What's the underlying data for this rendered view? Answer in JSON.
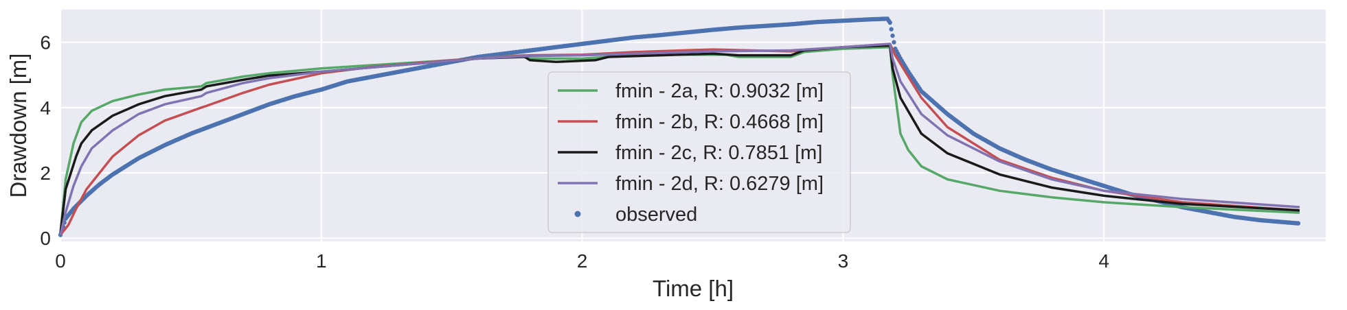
{
  "chart_data": {
    "type": "line",
    "xlabel": "Time [h]",
    "ylabel": "Drawdown [m]",
    "xlim": [
      0,
      4.85
    ],
    "ylim": [
      -0.1,
      7.0
    ],
    "xticks": [
      0,
      1,
      2,
      3,
      4
    ],
    "yticks": [
      0,
      2,
      4,
      6
    ],
    "grid": true,
    "legend_position": "center",
    "background": "#eaeaf2",
    "series": [
      {
        "name": "fmin - 2a, R: 0.9032 [m]",
        "style": "line",
        "color": "#55a868",
        "x": [
          0,
          0.02,
          0.05,
          0.08,
          0.12,
          0.2,
          0.3,
          0.4,
          0.54,
          0.56,
          0.7,
          0.8,
          1.0,
          1.2,
          1.5,
          1.78,
          1.8,
          2.0,
          2.1,
          2.3,
          2.55,
          2.6,
          2.8,
          2.85,
          3.0,
          3.18,
          3.19,
          3.22,
          3.25,
          3.3,
          3.4,
          3.6,
          3.8,
          4.0,
          4.3,
          4.75
        ],
        "y": [
          0.15,
          1.8,
          2.9,
          3.55,
          3.9,
          4.2,
          4.4,
          4.55,
          4.65,
          4.75,
          4.95,
          5.05,
          5.2,
          5.3,
          5.45,
          5.6,
          5.5,
          5.5,
          5.55,
          5.62,
          5.62,
          5.55,
          5.55,
          5.7,
          5.8,
          5.85,
          5.0,
          3.2,
          2.7,
          2.2,
          1.8,
          1.45,
          1.25,
          1.1,
          0.95,
          0.78
        ]
      },
      {
        "name": "fmin - 2b, R: 0.4668 [m]",
        "style": "line",
        "color": "#c44e52",
        "x": [
          0,
          0.03,
          0.06,
          0.1,
          0.2,
          0.3,
          0.4,
          0.54,
          0.56,
          0.7,
          0.8,
          1.0,
          1.2,
          1.5,
          1.8,
          2.0,
          2.2,
          2.5,
          2.8,
          3.0,
          3.18,
          3.2,
          3.3,
          3.4,
          3.6,
          3.8,
          4.0,
          4.3,
          4.75
        ],
        "y": [
          0.1,
          0.4,
          0.9,
          1.5,
          2.5,
          3.15,
          3.6,
          4.0,
          4.05,
          4.45,
          4.7,
          5.05,
          5.25,
          5.45,
          5.6,
          5.62,
          5.7,
          5.78,
          5.72,
          5.85,
          5.95,
          5.6,
          4.3,
          3.4,
          2.4,
          1.85,
          1.45,
          1.1,
          0.85
        ]
      },
      {
        "name": "fmin - 2c, R: 0.7851 [m]",
        "style": "line",
        "color": "#1a1a1a",
        "x": [
          0,
          0.02,
          0.04,
          0.06,
          0.08,
          0.12,
          0.2,
          0.3,
          0.4,
          0.54,
          0.56,
          0.7,
          0.8,
          1.0,
          1.3,
          1.6,
          1.78,
          1.8,
          1.9,
          2.05,
          2.1,
          2.3,
          2.5,
          2.6,
          2.8,
          2.85,
          3.0,
          3.18,
          3.19,
          3.22,
          3.3,
          3.4,
          3.6,
          3.8,
          4.0,
          4.3,
          4.75
        ],
        "y": [
          0.15,
          1.5,
          2.0,
          2.5,
          2.9,
          3.3,
          3.75,
          4.1,
          4.35,
          4.55,
          4.65,
          4.85,
          4.98,
          5.1,
          5.3,
          5.5,
          5.55,
          5.45,
          5.4,
          5.45,
          5.55,
          5.6,
          5.65,
          5.6,
          5.6,
          5.75,
          5.85,
          5.9,
          5.2,
          4.3,
          3.2,
          2.6,
          1.95,
          1.55,
          1.3,
          1.05,
          0.85
        ]
      },
      {
        "name": "fmin - 2d, R: 0.6279 [m]",
        "style": "line",
        "color": "#8172b2",
        "x": [
          0,
          0.02,
          0.05,
          0.08,
          0.12,
          0.2,
          0.3,
          0.4,
          0.54,
          0.56,
          0.7,
          0.8,
          1.0,
          1.3,
          1.6,
          1.8,
          2.0,
          2.2,
          2.5,
          2.8,
          3.0,
          3.18,
          3.19,
          3.22,
          3.3,
          3.4,
          3.6,
          3.8,
          4.0,
          4.3,
          4.75
        ],
        "y": [
          0.1,
          0.8,
          1.6,
          2.2,
          2.75,
          3.3,
          3.8,
          4.1,
          4.35,
          4.45,
          4.75,
          4.9,
          5.1,
          5.3,
          5.5,
          5.58,
          5.6,
          5.65,
          5.72,
          5.75,
          5.85,
          5.95,
          5.5,
          4.8,
          3.8,
          3.15,
          2.35,
          1.8,
          1.45,
          1.2,
          0.95
        ]
      },
      {
        "name": "observed",
        "style": "markers",
        "color": "#4c72b0",
        "x": [
          0,
          0.02,
          0.05,
          0.1,
          0.15,
          0.2,
          0.3,
          0.4,
          0.5,
          0.6,
          0.7,
          0.8,
          0.9,
          1.0,
          1.1,
          1.2,
          1.3,
          1.4,
          1.5,
          1.6,
          1.7,
          1.8,
          1.9,
          2.0,
          2.1,
          2.2,
          2.3,
          2.4,
          2.5,
          2.6,
          2.7,
          2.8,
          2.9,
          3.0,
          3.1,
          3.17,
          3.18,
          3.19,
          3.2,
          3.22,
          3.25,
          3.3,
          3.4,
          3.5,
          3.6,
          3.7,
          3.8,
          3.9,
          4.0,
          4.1,
          4.2,
          4.3,
          4.4,
          4.5,
          4.6,
          4.75
        ],
        "y": [
          0.1,
          0.6,
          0.9,
          1.3,
          1.65,
          1.95,
          2.45,
          2.85,
          3.2,
          3.5,
          3.8,
          4.1,
          4.35,
          4.55,
          4.8,
          4.95,
          5.1,
          5.25,
          5.4,
          5.55,
          5.65,
          5.75,
          5.85,
          5.95,
          6.05,
          6.15,
          6.22,
          6.3,
          6.38,
          6.45,
          6.5,
          6.55,
          6.62,
          6.66,
          6.7,
          6.72,
          6.6,
          6.2,
          5.8,
          5.5,
          5.1,
          4.5,
          3.8,
          3.2,
          2.75,
          2.4,
          2.1,
          1.85,
          1.6,
          1.35,
          1.15,
          0.95,
          0.8,
          0.65,
          0.55,
          0.45
        ]
      }
    ]
  }
}
